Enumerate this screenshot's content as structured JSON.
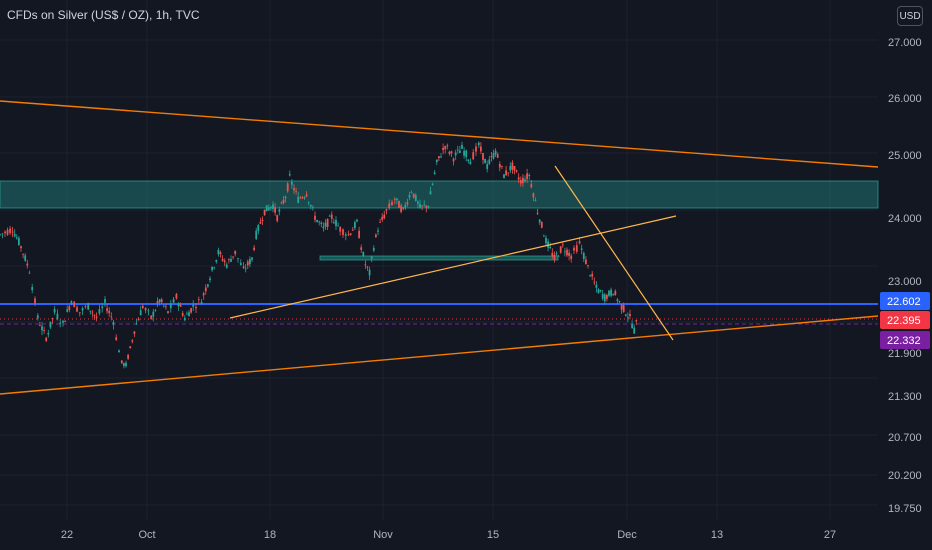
{
  "header": {
    "symbol_title": "CFDs on Silver (US$ / OZ), 1h, TVC",
    "currency_button": "USD"
  },
  "colors": {
    "background": "#131722",
    "grid": "#1e222d",
    "up_candle": "#26a69a",
    "down_candle": "#ef5350",
    "trendline_orange": "#f57c00",
    "trendline_yellow": "#ffb74d",
    "zone_teal": "#26a69a",
    "horizontal_blue": "#2962ff",
    "price_tag_blue": "#2962ff",
    "price_tag_red": "#f23645",
    "price_tag_purple": "#7b1fa2"
  },
  "chart_data": {
    "type": "candlestick",
    "title": "CFDs on Silver (US$ / OZ), 1h, TVC",
    "y_scale": "log",
    "ylim": [
      19.5,
      27.5
    ],
    "y_ticks": [
      "27.000",
      "26.000",
      "25.000",
      "24.000",
      "23.000",
      "22.602",
      "22.395",
      "22.332",
      "21.900",
      "21.300",
      "20.700",
      "20.200",
      "19.750"
    ],
    "x_ticks": [
      "22",
      "Oct",
      "18",
      "Nov",
      "15",
      "Dec",
      "13",
      "27"
    ],
    "grid": true,
    "price_path": [
      [
        0.0,
        23.8
      ],
      [
        0.03,
        23.9
      ],
      [
        0.05,
        23.6
      ],
      [
        0.07,
        23.2
      ],
      [
        0.09,
        22.4
      ],
      [
        0.11,
        22.05
      ],
      [
        0.13,
        22.5
      ],
      [
        0.15,
        22.3
      ],
      [
        0.17,
        22.7
      ],
      [
        0.19,
        22.5
      ],
      [
        0.21,
        22.6
      ],
      [
        0.23,
        22.4
      ],
      [
        0.25,
        22.65
      ],
      [
        0.27,
        22.35
      ],
      [
        0.29,
        21.45
      ],
      [
        0.3,
        21.4
      ],
      [
        0.32,
        22.2
      ],
      [
        0.34,
        22.6
      ],
      [
        0.36,
        22.4
      ],
      [
        0.38,
        22.7
      ],
      [
        0.4,
        22.5
      ],
      [
        0.42,
        22.75
      ],
      [
        0.44,
        22.4
      ],
      [
        0.46,
        22.6
      ],
      [
        0.48,
        22.7
      ],
      [
        0.5,
        23.1
      ],
      [
        0.52,
        23.5
      ],
      [
        0.54,
        23.3
      ],
      [
        0.56,
        23.5
      ],
      [
        0.58,
        23.2
      ],
      [
        0.6,
        23.4
      ],
      [
        0.61,
        23.8
      ],
      [
        0.63,
        24.2
      ],
      [
        0.65,
        24.3
      ],
      [
        0.66,
        24.1
      ],
      [
        0.68,
        24.45
      ],
      [
        0.69,
        24.75
      ],
      [
        0.71,
        24.4
      ],
      [
        0.73,
        24.5
      ],
      [
        0.75,
        24.1
      ],
      [
        0.77,
        23.9
      ],
      [
        0.79,
        24.1
      ],
      [
        0.81,
        23.9
      ],
      [
        0.83,
        23.8
      ],
      [
        0.85,
        24.0
      ],
      [
        0.86,
        23.6
      ],
      [
        0.87,
        23.3
      ],
      [
        0.88,
        23.15
      ],
      [
        0.89,
        23.6
      ],
      [
        0.9,
        23.9
      ],
      [
        0.92,
        24.2
      ],
      [
        0.94,
        24.4
      ],
      [
        0.96,
        24.2
      ],
      [
        0.98,
        24.55
      ],
      [
        1.0,
        24.25
      ],
      [
        1.02,
        24.3
      ],
      [
        1.04,
        25.0
      ],
      [
        1.06,
        25.3
      ],
      [
        1.08,
        25.1
      ],
      [
        1.1,
        25.25
      ],
      [
        1.12,
        25.05
      ],
      [
        1.14,
        25.3
      ],
      [
        1.16,
        24.95
      ],
      [
        1.18,
        25.2
      ],
      [
        1.2,
        24.8
      ],
      [
        1.22,
        24.95
      ],
      [
        1.24,
        24.7
      ],
      [
        1.26,
        24.8
      ],
      [
        1.28,
        24.2
      ],
      [
        1.3,
        23.7
      ],
      [
        1.32,
        23.4
      ],
      [
        1.34,
        23.6
      ],
      [
        1.36,
        23.45
      ],
      [
        1.38,
        23.65
      ],
      [
        1.4,
        23.25
      ],
      [
        1.42,
        22.9
      ],
      [
        1.44,
        22.75
      ],
      [
        1.46,
        22.85
      ],
      [
        1.48,
        22.6
      ],
      [
        1.5,
        22.4
      ],
      [
        1.51,
        22.2
      ],
      [
        1.52,
        22.4
      ]
    ],
    "annotations": {
      "zone_upper": [
        24.15,
        24.6
      ],
      "zone_mid": 23.37,
      "horizontal_support": 22.602,
      "current_price": 22.395,
      "dotted_price": 22.332
    },
    "price_tags": [
      {
        "label": "22.602",
        "value": 22.602,
        "color": "#2962ff"
      },
      {
        "label": "22.395",
        "value": 22.395,
        "color": "#f23645"
      },
      {
        "label": "22.332",
        "value": 22.332,
        "color": "#7b1fa2"
      }
    ]
  }
}
